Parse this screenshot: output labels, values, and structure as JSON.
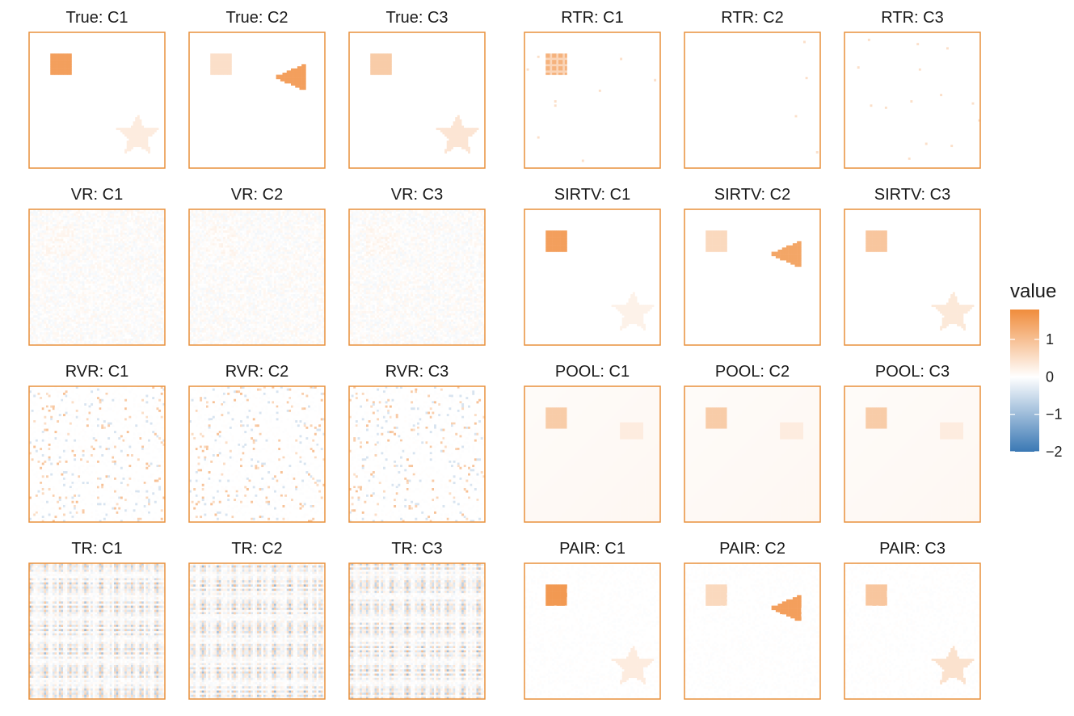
{
  "chart_data": {
    "type": "heatmap",
    "layout": "facet-grid",
    "colors": {
      "low": "#3a78b4",
      "mid": "#ffffff",
      "high": "#f08c3c",
      "frame": "#e8903c"
    },
    "value_range": [
      -2,
      1.8
    ],
    "legend": {
      "title": "value",
      "placement": "right",
      "ticks": [
        {
          "value": 1,
          "label": "1"
        },
        {
          "value": 0,
          "label": "0"
        },
        {
          "value": -1,
          "label": "−1"
        },
        {
          "value": -2,
          "label": "−2"
        }
      ]
    },
    "panels": [
      {
        "title": "True: C1",
        "pattern": "true",
        "square": 1.5,
        "triangle": 0,
        "star": 0.3
      },
      {
        "title": "True: C2",
        "pattern": "true",
        "square": 0.5,
        "triangle": 1.5,
        "star": 0
      },
      {
        "title": "True: C3",
        "pattern": "true",
        "square": 0.8,
        "triangle": 0,
        "star": 0.4
      },
      {
        "title": "RTR: C1",
        "pattern": "rtr",
        "square": 1.2,
        "triangle": 0,
        "star": 0
      },
      {
        "title": "RTR: C2",
        "pattern": "rtr",
        "square": 0,
        "triangle": 0,
        "star": 0
      },
      {
        "title": "RTR: C3",
        "pattern": "rtr",
        "square": 0,
        "triangle": 0,
        "star": 0
      },
      {
        "title": "VR: C1",
        "pattern": "noise",
        "square": 0,
        "triangle": 0,
        "star": 0
      },
      {
        "title": "VR: C2",
        "pattern": "noise",
        "square": 0,
        "triangle": 0,
        "star": 0
      },
      {
        "title": "VR: C3",
        "pattern": "noise",
        "square": 0,
        "triangle": 0,
        "star": 0
      },
      {
        "title": "SIRTV: C1",
        "pattern": "sirtv",
        "square": 1.5,
        "triangle": 0,
        "star": 0.2
      },
      {
        "title": "SIRTV: C2",
        "pattern": "sirtv",
        "square": 0.6,
        "triangle": 1.4,
        "star": 0
      },
      {
        "title": "SIRTV: C3",
        "pattern": "sirtv",
        "square": 0.9,
        "triangle": 0,
        "star": 0.35
      },
      {
        "title": "RVR: C1",
        "pattern": "sparse",
        "square": 0,
        "triangle": 0,
        "star": 0
      },
      {
        "title": "RVR: C2",
        "pattern": "sparse",
        "square": 0,
        "triangle": 0,
        "star": 0
      },
      {
        "title": "RVR: C3",
        "pattern": "sparse",
        "square": 0,
        "triangle": 0,
        "star": 0
      },
      {
        "title": "POOL: C1",
        "pattern": "pool",
        "square": 0.8,
        "triangle": 0.3,
        "star": 0.1
      },
      {
        "title": "POOL: C2",
        "pattern": "pool",
        "square": 0.8,
        "triangle": 0.3,
        "star": 0.1
      },
      {
        "title": "POOL: C3",
        "pattern": "pool",
        "square": 0.8,
        "triangle": 0.3,
        "star": 0.1
      },
      {
        "title": "TR: C1",
        "pattern": "stripes",
        "square": 0,
        "triangle": 0,
        "star": 0
      },
      {
        "title": "TR: C2",
        "pattern": "stripes",
        "square": 0,
        "triangle": 0,
        "star": 0
      },
      {
        "title": "TR: C3",
        "pattern": "stripes",
        "square": 0,
        "triangle": 0,
        "star": 0
      },
      {
        "title": "PAIR: C1",
        "pattern": "pair",
        "square": 1.6,
        "triangle": 0,
        "star": 0.3
      },
      {
        "title": "PAIR: C2",
        "pattern": "pair",
        "square": 0.6,
        "triangle": 1.5,
        "star": 0
      },
      {
        "title": "PAIR: C3",
        "pattern": "pair",
        "square": 0.9,
        "triangle": 0,
        "star": 0.45
      }
    ]
  }
}
